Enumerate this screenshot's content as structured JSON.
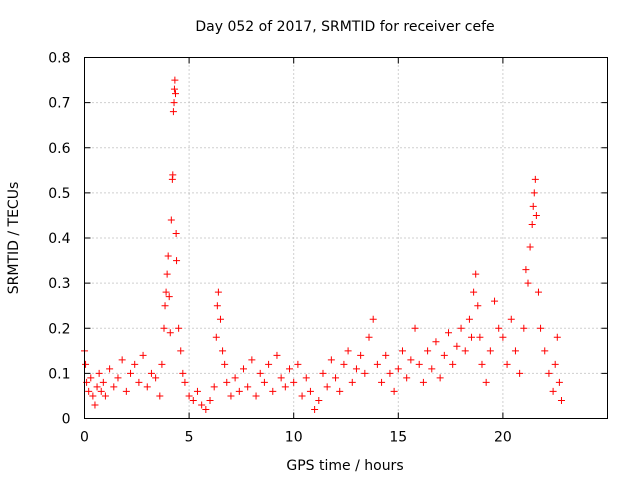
{
  "chart_data": {
    "type": "scatter",
    "title": "Day 052 of 2017, SRMTID for receiver cefe",
    "xlabel": "GPS time / hours",
    "ylabel": "SRMTID / TECUs",
    "xlim": [
      0,
      25
    ],
    "ylim": [
      0,
      0.8
    ],
    "xticks": [
      0,
      5,
      10,
      15,
      20
    ],
    "xtick_labels": [
      "0",
      "5",
      "10",
      "15",
      "20"
    ],
    "yticks": [
      0,
      0.1,
      0.2,
      0.3,
      0.4,
      0.5,
      0.6,
      0.7,
      0.8
    ],
    "ytick_labels": [
      "0",
      "0.1",
      "0.2",
      "0.3",
      "0.4",
      "0.5",
      "0.6",
      "0.7",
      "0.8"
    ],
    "grid": true,
    "marker": "plus",
    "color": "#ff0000",
    "series": [
      {
        "name": "SRMTID",
        "points": [
          [
            0.0,
            0.15
          ],
          [
            0.05,
            0.12
          ],
          [
            0.1,
            0.08
          ],
          [
            0.2,
            0.06
          ],
          [
            0.3,
            0.09
          ],
          [
            0.4,
            0.05
          ],
          [
            0.5,
            0.03
          ],
          [
            0.6,
            0.07
          ],
          [
            0.7,
            0.1
          ],
          [
            0.8,
            0.06
          ],
          [
            0.9,
            0.08
          ],
          [
            1.0,
            0.05
          ],
          [
            1.2,
            0.11
          ],
          [
            1.4,
            0.07
          ],
          [
            1.6,
            0.09
          ],
          [
            1.8,
            0.13
          ],
          [
            2.0,
            0.06
          ],
          [
            2.2,
            0.1
          ],
          [
            2.4,
            0.12
          ],
          [
            2.6,
            0.08
          ],
          [
            2.8,
            0.14
          ],
          [
            3.0,
            0.07
          ],
          [
            3.2,
            0.1
          ],
          [
            3.4,
            0.09
          ],
          [
            3.6,
            0.05
          ],
          [
            3.7,
            0.12
          ],
          [
            3.8,
            0.2
          ],
          [
            3.85,
            0.25
          ],
          [
            3.9,
            0.28
          ],
          [
            3.95,
            0.32
          ],
          [
            4.0,
            0.36
          ],
          [
            4.05,
            0.27
          ],
          [
            4.1,
            0.19
          ],
          [
            4.15,
            0.44
          ],
          [
            4.2,
            0.53
          ],
          [
            4.22,
            0.54
          ],
          [
            4.25,
            0.68
          ],
          [
            4.28,
            0.7
          ],
          [
            4.3,
            0.73
          ],
          [
            4.32,
            0.75
          ],
          [
            4.35,
            0.72
          ],
          [
            4.38,
            0.41
          ],
          [
            4.4,
            0.35
          ],
          [
            4.5,
            0.2
          ],
          [
            4.6,
            0.15
          ],
          [
            4.7,
            0.1
          ],
          [
            4.8,
            0.08
          ],
          [
            5.0,
            0.05
          ],
          [
            5.2,
            0.04
          ],
          [
            5.4,
            0.06
          ],
          [
            5.6,
            0.03
          ],
          [
            5.8,
            0.02
          ],
          [
            6.0,
            0.04
          ],
          [
            6.2,
            0.07
          ],
          [
            6.3,
            0.18
          ],
          [
            6.35,
            0.25
          ],
          [
            6.4,
            0.28
          ],
          [
            6.5,
            0.22
          ],
          [
            6.6,
            0.15
          ],
          [
            6.7,
            0.12
          ],
          [
            6.8,
            0.08
          ],
          [
            7.0,
            0.05
          ],
          [
            7.2,
            0.09
          ],
          [
            7.4,
            0.06
          ],
          [
            7.6,
            0.11
          ],
          [
            7.8,
            0.07
          ],
          [
            8.0,
            0.13
          ],
          [
            8.2,
            0.05
          ],
          [
            8.4,
            0.1
          ],
          [
            8.6,
            0.08
          ],
          [
            8.8,
            0.12
          ],
          [
            9.0,
            0.06
          ],
          [
            9.2,
            0.14
          ],
          [
            9.4,
            0.09
          ],
          [
            9.6,
            0.07
          ],
          [
            9.8,
            0.11
          ],
          [
            10.0,
            0.08
          ],
          [
            10.2,
            0.12
          ],
          [
            10.4,
            0.05
          ],
          [
            10.6,
            0.09
          ],
          [
            10.8,
            0.06
          ],
          [
            11.0,
            0.02
          ],
          [
            11.2,
            0.04
          ],
          [
            11.4,
            0.1
          ],
          [
            11.6,
            0.07
          ],
          [
            11.8,
            0.13
          ],
          [
            12.0,
            0.09
          ],
          [
            12.2,
            0.06
          ],
          [
            12.4,
            0.12
          ],
          [
            12.6,
            0.15
          ],
          [
            12.8,
            0.08
          ],
          [
            13.0,
            0.11
          ],
          [
            13.2,
            0.14
          ],
          [
            13.4,
            0.1
          ],
          [
            13.6,
            0.18
          ],
          [
            13.8,
            0.22
          ],
          [
            14.0,
            0.12
          ],
          [
            14.2,
            0.08
          ],
          [
            14.4,
            0.14
          ],
          [
            14.6,
            0.1
          ],
          [
            14.8,
            0.06
          ],
          [
            15.0,
            0.11
          ],
          [
            15.2,
            0.15
          ],
          [
            15.4,
            0.09
          ],
          [
            15.6,
            0.13
          ],
          [
            15.8,
            0.2
          ],
          [
            16.0,
            0.12
          ],
          [
            16.2,
            0.08
          ],
          [
            16.4,
            0.15
          ],
          [
            16.6,
            0.11
          ],
          [
            16.8,
            0.17
          ],
          [
            17.0,
            0.09
          ],
          [
            17.2,
            0.14
          ],
          [
            17.4,
            0.19
          ],
          [
            17.6,
            0.12
          ],
          [
            17.8,
            0.16
          ],
          [
            18.0,
            0.2
          ],
          [
            18.2,
            0.15
          ],
          [
            18.4,
            0.22
          ],
          [
            18.5,
            0.18
          ],
          [
            18.6,
            0.28
          ],
          [
            18.7,
            0.32
          ],
          [
            18.8,
            0.25
          ],
          [
            18.9,
            0.18
          ],
          [
            19.0,
            0.12
          ],
          [
            19.2,
            0.08
          ],
          [
            19.4,
            0.15
          ],
          [
            19.6,
            0.26
          ],
          [
            19.8,
            0.2
          ],
          [
            20.0,
            0.18
          ],
          [
            20.2,
            0.12
          ],
          [
            20.4,
            0.22
          ],
          [
            20.6,
            0.15
          ],
          [
            20.8,
            0.1
          ],
          [
            21.0,
            0.2
          ],
          [
            21.1,
            0.33
          ],
          [
            21.2,
            0.3
          ],
          [
            21.3,
            0.38
          ],
          [
            21.4,
            0.43
          ],
          [
            21.45,
            0.47
          ],
          [
            21.5,
            0.5
          ],
          [
            21.55,
            0.53
          ],
          [
            21.6,
            0.45
          ],
          [
            21.7,
            0.28
          ],
          [
            21.8,
            0.2
          ],
          [
            22.0,
            0.15
          ],
          [
            22.2,
            0.1
          ],
          [
            22.4,
            0.06
          ],
          [
            22.5,
            0.12
          ],
          [
            22.6,
            0.18
          ],
          [
            22.7,
            0.08
          ],
          [
            22.8,
            0.04
          ]
        ]
      }
    ]
  }
}
